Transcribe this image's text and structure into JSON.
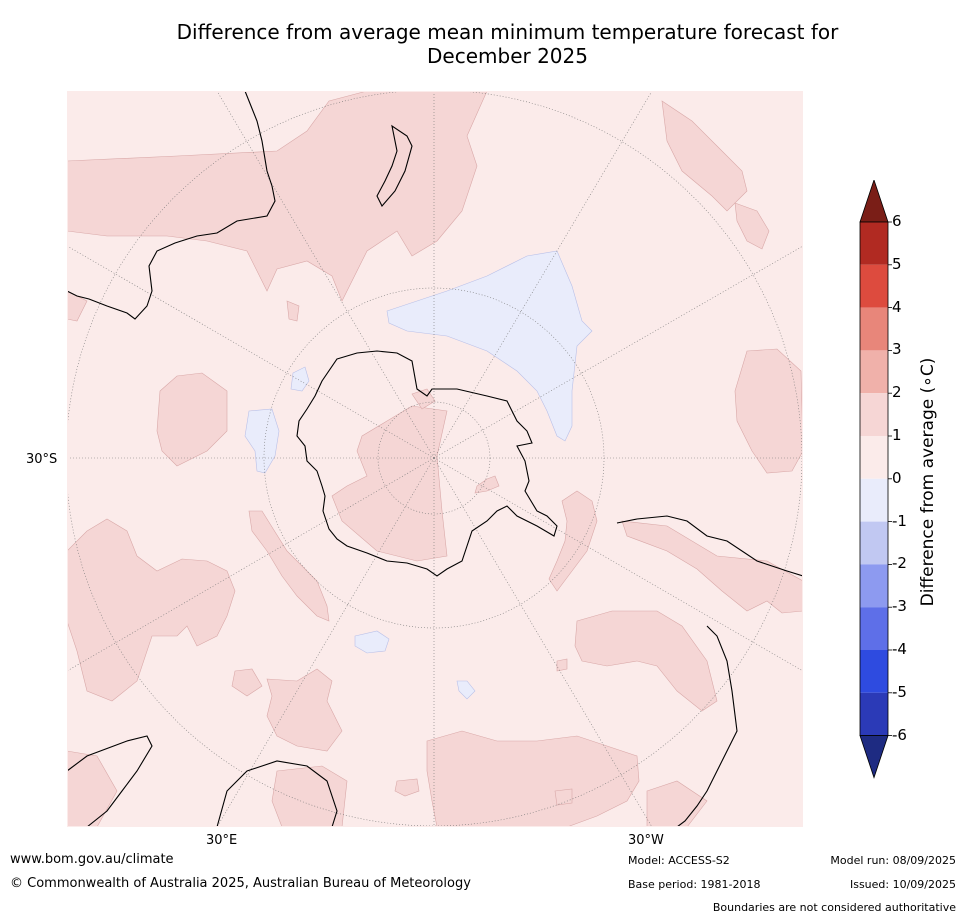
{
  "title_line1": "Difference from average mean minimum temperature forecast for",
  "title_line2": "December 2025",
  "map": {
    "projection": "south-polar stereographic",
    "lat_label": "30°S",
    "lon_label_east": "30°E",
    "lon_label_west": "30°W",
    "ocean_color": "#fbebea"
  },
  "colorbar": {
    "label": "Difference from average (∘C)",
    "ticks": [
      "6",
      "5",
      "4",
      "3",
      "2",
      "1",
      "0",
      "-1",
      "-2",
      "-3",
      "-4",
      "-5",
      "-6"
    ],
    "colors_top_to_bottom": [
      "#7a1e17",
      "#b12a22",
      "#dd4b3e",
      "#e8867a",
      "#f0b1aa",
      "#f6d6d5",
      "#fbebea",
      "#e9ecfb",
      "#c1c8f2",
      "#8d9af0",
      "#5e6fe8",
      "#2e4be0",
      "#2b3ab7",
      "#1e2b82"
    ]
  },
  "footer": {
    "website": "www.bom.gov.au/climate",
    "copyright": "© Commonwealth of Australia 2025, Australian Bureau of Meteorology",
    "model": "Model: ACCESS-S2",
    "base_period": "Base period: 1981-2018",
    "model_run": "Model run: 08/09/2025",
    "issued": "Issued: 10/09/2025",
    "disclaimer": "Boundaries are not considered authoritative"
  }
}
